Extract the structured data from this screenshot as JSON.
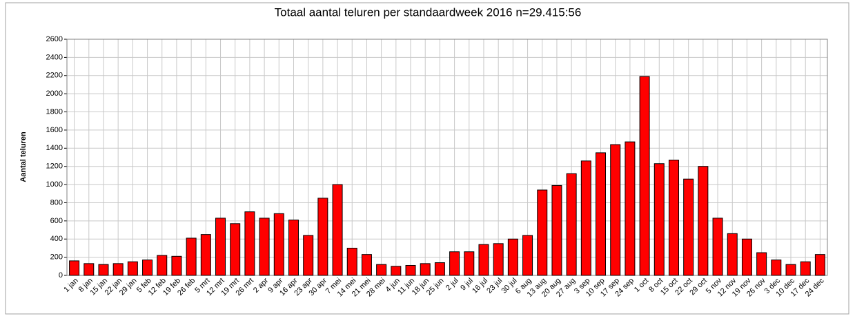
{
  "chart_data": {
    "type": "bar",
    "title": "Totaal aantal teluren per standaardweek 2016 n=29.415:56",
    "y_label": "Aantal teluren",
    "categories": [
      "1 jan",
      "8 jan",
      "15 jan",
      "22 jan",
      "29 jan",
      "5 feb",
      "12 feb",
      "19 feb",
      "26 feb",
      "5 mrt",
      "12 mrt",
      "19 mrt",
      "26 mrt",
      "2 apr",
      "9 apr",
      "16 apr",
      "23 apr",
      "30 apr",
      "7 mei",
      "14 mei",
      "21 mei",
      "28 mei",
      "4 jun",
      "11 jun",
      "18 jun",
      "25 jun",
      "2 jul",
      "9 jul",
      "16 jul",
      "23 jul",
      "30 jul",
      "6 aug",
      "13 aug",
      "20 aug",
      "27 aug",
      "3 sep",
      "10 sep",
      "17 sep",
      "24 sep",
      "1 oct",
      "8 oct",
      "15 oct",
      "22 oct",
      "29 oct",
      "5 nov",
      "12 nov",
      "19 nov",
      "26 nov",
      "3 dec",
      "10 dec",
      "17 dec",
      "24 dec"
    ],
    "values": [
      160,
      130,
      120,
      130,
      150,
      170,
      220,
      210,
      410,
      450,
      630,
      570,
      700,
      630,
      680,
      610,
      440,
      850,
      1000,
      300,
      230,
      120,
      100,
      110,
      130,
      140,
      260,
      260,
      340,
      350,
      400,
      440,
      940,
      990,
      1120,
      1260,
      1350,
      1440,
      1470,
      2190,
      1230,
      1270,
      1060,
      1200,
      630,
      460,
      400,
      250,
      170,
      120,
      150,
      230
    ],
    "color": "#ff0000",
    "ylim": [
      0,
      2600
    ],
    "yticks": [
      0,
      200,
      400,
      600,
      800,
      1000,
      1200,
      1400,
      1600,
      1800,
      2000,
      2200,
      2400,
      2600
    ],
    "grid": true
  }
}
